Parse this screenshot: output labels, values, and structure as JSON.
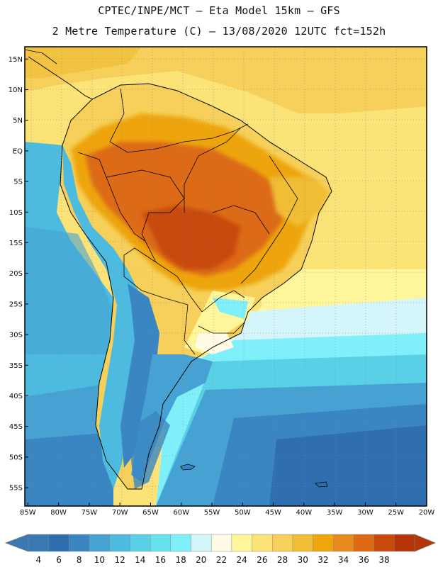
{
  "header": {
    "line1": "CPTEC/INPE/MCT –  Eta Model 15km – GFS",
    "line2": "2 Metre Temperature (C) – 13/08/2020 12UTC fct=152h"
  },
  "map": {
    "lat_ticks": [
      "15N",
      "10N",
      "5N",
      "EQ",
      "5S",
      "10S",
      "15S",
      "20S",
      "25S",
      "30S",
      "35S",
      "40S",
      "45S",
      "50S",
      "55S"
    ],
    "lon_ticks": [
      "85W",
      "80W",
      "75W",
      "70W",
      "65W",
      "60W",
      "55W",
      "50W",
      "45W",
      "40W",
      "35W",
      "30W",
      "25W",
      "20W"
    ],
    "lat_range": [
      17,
      -58
    ],
    "lon_range": [
      -85.5,
      -20
    ]
  },
  "colorbar": {
    "labels": [
      "4",
      "6",
      "8",
      "10",
      "12",
      "14",
      "16",
      "18",
      "20",
      "22",
      "24",
      "26",
      "28",
      "30",
      "32",
      "34",
      "36",
      "38"
    ],
    "colors": [
      "#3a78b4",
      "#2f6fb0",
      "#3a86c2",
      "#46a2d2",
      "#4dbbe0",
      "#5ad0e6",
      "#66e2ee",
      "#7ff0fa",
      "#d4f6fb",
      "#fffbe6",
      "#fff59a",
      "#fbe377",
      "#f6d05a",
      "#f0bd34",
      "#eea50e",
      "#e98a1f",
      "#dd6a12",
      "#c84a0a",
      "#b53506"
    ],
    "cmin": 4,
    "cmax": 38
  }
}
